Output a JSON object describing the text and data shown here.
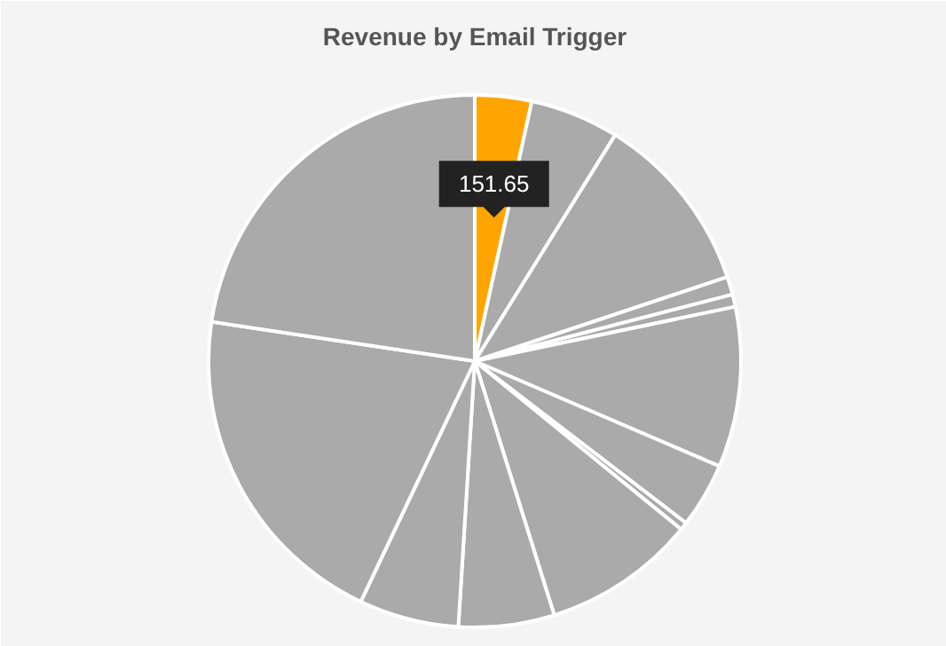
{
  "chart_data": {
    "type": "pie",
    "title": "Revenue by Email Trigger",
    "categories": [
      null,
      null,
      null,
      null,
      null,
      null,
      null,
      null,
      null,
      null,
      null,
      null,
      null
    ],
    "values": [
      151.65,
      238,
      486,
      48,
      33,
      429,
      174,
      21,
      409,
      256,
      267,
      895,
      997
    ],
    "colors": [
      "#ffa500",
      "#aaaaaa",
      "#aaaaaa",
      "#aaaaaa",
      "#aaaaaa",
      "#aaaaaa",
      "#aaaaaa",
      "#aaaaaa",
      "#aaaaaa",
      "#aaaaaa",
      "#aaaaaa",
      "#aaaaaa",
      "#aaaaaa"
    ],
    "value_labels": [
      "151.65",
      null,
      null,
      null,
      null,
      null,
      null,
      null,
      null,
      null,
      null,
      null,
      null
    ]
  }
}
